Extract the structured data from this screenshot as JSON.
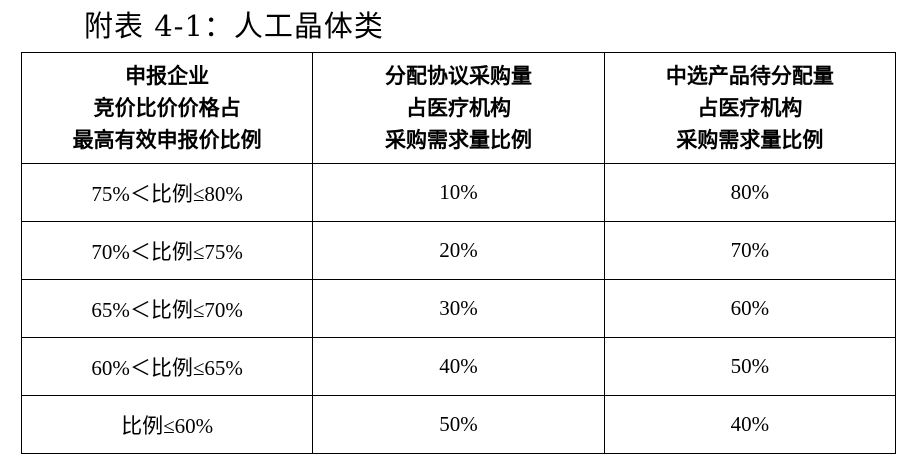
{
  "title": "附表 4-1：人工晶体类",
  "table": {
    "headers": [
      [
        "申报企业",
        "竞价比价价格占",
        "最高有效申报价比例"
      ],
      [
        "分配协议采购量",
        "占医疗机构",
        "采购需求量比例"
      ],
      [
        "中选产品待分配量",
        "占医疗机构",
        "采购需求量比例"
      ]
    ],
    "rows": [
      [
        "75%＜比例≤80%",
        "10%",
        "80%"
      ],
      [
        "70%＜比例≤75%",
        "20%",
        "70%"
      ],
      [
        "65%＜比例≤70%",
        "30%",
        "60%"
      ],
      [
        "60%＜比例≤65%",
        "40%",
        "50%"
      ],
      [
        "比例≤60%",
        "50%",
        "40%"
      ]
    ]
  }
}
